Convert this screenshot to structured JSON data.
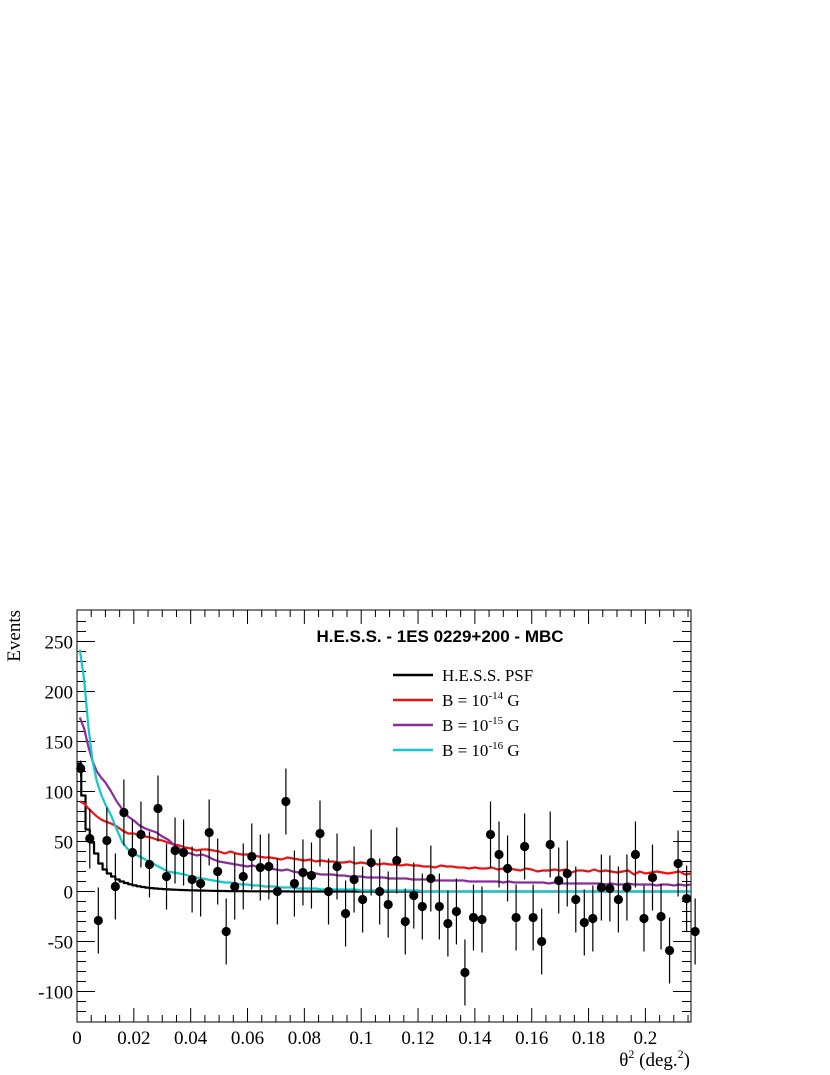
{
  "chart_data": {
    "type": "scatter",
    "title": "H.E.S.S. - 1ES 0229+200 - MBC",
    "ylabel": "Events",
    "xlabel": "θ² (deg.²)",
    "xlim": [
      0,
      0.218
    ],
    "ylim": [
      -130,
      280
    ],
    "x_ticks": [
      0,
      0.02,
      0.04,
      0.06,
      0.08,
      0.1,
      0.12,
      0.14,
      0.16,
      0.18,
      0.2
    ],
    "x_tick_labels": [
      "0",
      "0.02",
      "0.04",
      "0.06",
      "0.08",
      "0.1",
      "0.12",
      "0.14",
      "0.16",
      "0.18",
      "0.2"
    ],
    "y_ticks": [
      -100,
      -50,
      0,
      50,
      100,
      150,
      200,
      250
    ],
    "y_tick_labels": [
      "-100",
      "-50",
      "0",
      "50",
      "100",
      "150",
      "200",
      "250"
    ],
    "legend_position": "top-right",
    "legend": [
      {
        "text": "H.E.S.S. PSF",
        "color": "#000000"
      },
      {
        "text": "B = 10^-14 G",
        "color": "#ee1111"
      },
      {
        "text": "B = 10^-15 G",
        "color": "#8c2c9c"
      },
      {
        "text": "B = 10^-16 G",
        "color": "#11c8cc"
      }
    ],
    "points": [
      {
        "x": 0.0013,
        "y": 123,
        "err": 8
      },
      {
        "x": 0.0045,
        "y": 53,
        "err": 30
      },
      {
        "x": 0.0075,
        "y": -29,
        "err": 33
      },
      {
        "x": 0.0105,
        "y": 51,
        "err": 33
      },
      {
        "x": 0.0135,
        "y": 5,
        "err": 33
      },
      {
        "x": 0.0165,
        "y": 79,
        "err": 33
      },
      {
        "x": 0.0195,
        "y": 39,
        "err": 33
      },
      {
        "x": 0.0225,
        "y": 57,
        "err": 33
      },
      {
        "x": 0.0255,
        "y": 27,
        "err": 33
      },
      {
        "x": 0.0285,
        "y": 83,
        "err": 33
      },
      {
        "x": 0.0315,
        "y": 15,
        "err": 33
      },
      {
        "x": 0.0345,
        "y": 41,
        "err": 33
      },
      {
        "x": 0.0375,
        "y": 39,
        "err": 33
      },
      {
        "x": 0.0405,
        "y": 12,
        "err": 33
      },
      {
        "x": 0.0435,
        "y": 8,
        "err": 33
      },
      {
        "x": 0.0465,
        "y": 59,
        "err": 33
      },
      {
        "x": 0.0495,
        "y": 20,
        "err": 33
      },
      {
        "x": 0.0525,
        "y": -40,
        "err": 33
      },
      {
        "x": 0.0555,
        "y": 5,
        "err": 33
      },
      {
        "x": 0.0585,
        "y": 15,
        "err": 33
      },
      {
        "x": 0.0615,
        "y": 35,
        "err": 33
      },
      {
        "x": 0.0645,
        "y": 24,
        "err": 33
      },
      {
        "x": 0.0675,
        "y": 25,
        "err": 33
      },
      {
        "x": 0.0705,
        "y": 0,
        "err": 33
      },
      {
        "x": 0.0735,
        "y": 90,
        "err": 33
      },
      {
        "x": 0.0765,
        "y": 8,
        "err": 33
      },
      {
        "x": 0.0795,
        "y": 19,
        "err": 33
      },
      {
        "x": 0.0825,
        "y": 16,
        "err": 33
      },
      {
        "x": 0.0855,
        "y": 58,
        "err": 33
      },
      {
        "x": 0.0885,
        "y": 0,
        "err": 33
      },
      {
        "x": 0.0915,
        "y": 25,
        "err": 33
      },
      {
        "x": 0.0945,
        "y": -22,
        "err": 33
      },
      {
        "x": 0.0975,
        "y": 12,
        "err": 33
      },
      {
        "x": 0.1005,
        "y": -8,
        "err": 33
      },
      {
        "x": 0.1035,
        "y": 29,
        "err": 33
      },
      {
        "x": 0.1065,
        "y": 0,
        "err": 33
      },
      {
        "x": 0.1095,
        "y": -13,
        "err": 33
      },
      {
        "x": 0.1125,
        "y": 31,
        "err": 33
      },
      {
        "x": 0.1155,
        "y": -30,
        "err": 33
      },
      {
        "x": 0.1185,
        "y": -4,
        "err": 33
      },
      {
        "x": 0.1215,
        "y": -15,
        "err": 33
      },
      {
        "x": 0.1245,
        "y": 13,
        "err": 33
      },
      {
        "x": 0.1275,
        "y": -15,
        "err": 33
      },
      {
        "x": 0.1305,
        "y": -32,
        "err": 33
      },
      {
        "x": 0.1335,
        "y": -20,
        "err": 33
      },
      {
        "x": 0.1365,
        "y": -81,
        "err": 33
      },
      {
        "x": 0.1395,
        "y": -26,
        "err": 33
      },
      {
        "x": 0.1425,
        "y": -28,
        "err": 33
      },
      {
        "x": 0.1455,
        "y": 57,
        "err": 33
      },
      {
        "x": 0.1485,
        "y": 37,
        "err": 33
      },
      {
        "x": 0.1515,
        "y": 23,
        "err": 33
      },
      {
        "x": 0.1545,
        "y": -26,
        "err": 33
      },
      {
        "x": 0.1575,
        "y": 45,
        "err": 33
      },
      {
        "x": 0.1605,
        "y": -26,
        "err": 33
      },
      {
        "x": 0.1635,
        "y": -50,
        "err": 33
      },
      {
        "x": 0.1665,
        "y": 47,
        "err": 33
      },
      {
        "x": 0.1695,
        "y": 11,
        "err": 33
      },
      {
        "x": 0.1725,
        "y": 18,
        "err": 33
      },
      {
        "x": 0.1755,
        "y": -8,
        "err": 33
      },
      {
        "x": 0.1785,
        "y": -31,
        "err": 33
      },
      {
        "x": 0.1815,
        "y": -27,
        "err": 33
      },
      {
        "x": 0.1845,
        "y": 4,
        "err": 33
      },
      {
        "x": 0.1875,
        "y": 3,
        "err": 33
      },
      {
        "x": 0.1905,
        "y": -8,
        "err": 33
      },
      {
        "x": 0.1935,
        "y": 4,
        "err": 33
      },
      {
        "x": 0.1965,
        "y": 37,
        "err": 33
      },
      {
        "x": 0.1995,
        "y": -27,
        "err": 33
      },
      {
        "x": 0.2025,
        "y": 14,
        "err": 33
      },
      {
        "x": 0.2055,
        "y": -25,
        "err": 33
      },
      {
        "x": 0.2085,
        "y": -59,
        "err": 33
      },
      {
        "x": 0.2115,
        "y": 28,
        "err": 33
      },
      {
        "x": 0.2145,
        "y": -7,
        "err": 33
      },
      {
        "x": 0.2175,
        "y": -40,
        "err": 33
      }
    ],
    "series": [
      {
        "color": "#000000",
        "step": true,
        "x": [
          0,
          0.0015,
          0.003,
          0.0045,
          0.006,
          0.0075,
          0.009,
          0.0105,
          0.012,
          0.0135,
          0.015,
          0.0165,
          0.018,
          0.0195,
          0.021,
          0.0225,
          0.024,
          0.0255,
          0.027,
          0.0285,
          0.03,
          0.0315,
          0.033,
          0.0345,
          0.036,
          0.0375,
          0.039,
          0.0405,
          0.042,
          0.0435,
          0.045,
          0.0465,
          0.048,
          0.0495,
          0.051,
          0.0525,
          0.054,
          0.0555,
          0.057,
          0.0585,
          0.06,
          0.0615,
          0.063,
          0.0645,
          0.066,
          0.0675,
          0.069,
          0.0705,
          0.072,
          0.0735,
          0.075,
          0.0765,
          0.078,
          0.0795,
          0.081,
          0.0825,
          0.084,
          0.0855,
          0.087,
          0.0885,
          0.09
        ],
        "values": [
          128,
          96,
          62,
          49,
          38,
          28,
          22,
          18,
          15,
          12,
          10,
          8.5,
          7.2,
          6.1,
          5.2,
          4.5,
          3.9,
          3.4,
          3,
          2.7,
          2.4,
          2.1,
          1.9,
          1.7,
          1.5,
          1.4,
          1.2,
          1.1,
          1,
          0.9,
          0.8,
          0.7,
          0.6,
          0.5,
          0.5,
          0.4,
          0.4,
          0.3,
          0.3,
          0.3,
          0.2,
          0.2,
          0.2,
          0.2,
          0.1,
          0.1,
          0.1,
          0.1,
          0.1,
          0.1,
          0,
          0,
          0,
          0,
          0,
          0,
          0,
          0,
          0,
          0,
          0
        ]
      },
      {
        "color": "#ee1111",
        "x": [
          0.001,
          0.0025,
          0.004,
          0.0055,
          0.007,
          0.0085,
          0.01,
          0.012,
          0.014,
          0.016,
          0.018,
          0.02,
          0.022,
          0.024,
          0.026,
          0.028,
          0.03,
          0.032,
          0.034,
          0.036,
          0.038,
          0.04,
          0.042,
          0.044,
          0.046,
          0.048,
          0.05,
          0.052,
          0.054,
          0.056,
          0.058,
          0.06,
          0.062,
          0.064,
          0.066,
          0.068,
          0.07,
          0.072,
          0.074,
          0.076,
          0.078,
          0.08,
          0.082,
          0.084,
          0.086,
          0.088,
          0.09,
          0.092,
          0.094,
          0.096,
          0.098,
          0.1,
          0.102,
          0.104,
          0.106,
          0.108,
          0.11,
          0.112,
          0.114,
          0.116,
          0.118,
          0.12,
          0.122,
          0.124,
          0.126,
          0.128,
          0.13,
          0.132,
          0.134,
          0.136,
          0.138,
          0.14,
          0.142,
          0.144,
          0.146,
          0.148,
          0.15,
          0.152,
          0.154,
          0.156,
          0.158,
          0.16,
          0.162,
          0.164,
          0.166,
          0.168,
          0.17,
          0.172,
          0.174,
          0.176,
          0.178,
          0.18,
          0.182,
          0.184,
          0.186,
          0.188,
          0.19,
          0.192,
          0.194,
          0.196,
          0.198,
          0.2,
          0.202,
          0.204,
          0.206,
          0.208,
          0.21,
          0.212,
          0.214,
          0.216
        ],
        "values": [
          90,
          88,
          83,
          79,
          75,
          72,
          70,
          68,
          65,
          61,
          58,
          58,
          56,
          55,
          54,
          52,
          51,
          49,
          47,
          46,
          44,
          43,
          41,
          42,
          42,
          41,
          40,
          38,
          40,
          38,
          37,
          37,
          36,
          35,
          34,
          34,
          33,
          32,
          34,
          33,
          32,
          31,
          32,
          30,
          31,
          30,
          30,
          29,
          29,
          30,
          28,
          29,
          28,
          28,
          27,
          28,
          27,
          27,
          26,
          27,
          26,
          26,
          25,
          25,
          24,
          26,
          25,
          25,
          24,
          24,
          23,
          24,
          23,
          23,
          24,
          22,
          23,
          23,
          22,
          21,
          23,
          22,
          20,
          21,
          21,
          22,
          21,
          22,
          19,
          21,
          21,
          20,
          22,
          20,
          21,
          20,
          19,
          20,
          21,
          17,
          20,
          18,
          19,
          20,
          19,
          18,
          19,
          20,
          17,
          18
        ]
      },
      {
        "color": "#8c2c9c",
        "x": [
          0.001,
          0.0025,
          0.004,
          0.0055,
          0.007,
          0.0085,
          0.01,
          0.012,
          0.014,
          0.016,
          0.018,
          0.02,
          0.022,
          0.024,
          0.026,
          0.028,
          0.03,
          0.032,
          0.034,
          0.036,
          0.038,
          0.04,
          0.042,
          0.044,
          0.046,
          0.048,
          0.05,
          0.052,
          0.054,
          0.056,
          0.058,
          0.06,
          0.062,
          0.064,
          0.066,
          0.068,
          0.07,
          0.072,
          0.074,
          0.076,
          0.078,
          0.08,
          0.082,
          0.084,
          0.086,
          0.088,
          0.09,
          0.092,
          0.094,
          0.096,
          0.098,
          0.1,
          0.102,
          0.104,
          0.106,
          0.108,
          0.11,
          0.112,
          0.114,
          0.116,
          0.118,
          0.12,
          0.122,
          0.124,
          0.126,
          0.128,
          0.13,
          0.132,
          0.134,
          0.136,
          0.138,
          0.14,
          0.142,
          0.144,
          0.146,
          0.148,
          0.15,
          0.152,
          0.154,
          0.156,
          0.158,
          0.16,
          0.162,
          0.164,
          0.166,
          0.168,
          0.17,
          0.172,
          0.174,
          0.176,
          0.178,
          0.18,
          0.182,
          0.184,
          0.186,
          0.188,
          0.19,
          0.192,
          0.194,
          0.196,
          0.198,
          0.2,
          0.202,
          0.204,
          0.206,
          0.208,
          0.21,
          0.212,
          0.214,
          0.216
        ],
        "values": [
          174,
          163,
          145,
          130,
          120,
          114,
          109,
          100,
          90,
          82,
          75,
          71,
          66,
          63,
          61,
          59,
          55,
          52,
          47,
          43,
          39,
          38,
          36,
          37,
          35,
          32,
          30,
          29,
          28,
          27,
          26,
          25,
          26,
          24,
          24,
          23,
          22,
          21,
          22,
          20,
          19,
          19,
          18,
          18,
          17,
          17,
          17,
          16,
          16,
          15,
          15,
          15,
          14,
          14,
          14,
          14,
          13,
          13,
          13,
          13,
          12,
          12,
          12,
          12,
          11,
          11,
          11,
          11,
          11,
          11,
          10,
          10,
          10,
          10,
          10,
          10,
          9,
          10,
          9,
          9,
          9,
          9,
          9,
          9,
          8,
          9,
          8,
          8,
          8,
          8,
          8,
          8,
          8,
          8,
          7,
          8,
          7,
          7,
          8,
          7,
          7,
          7,
          7,
          6,
          7,
          7,
          6,
          7,
          6,
          7
        ]
      },
      {
        "color": "#11c8cc",
        "x": [
          0.001,
          0.0025,
          0.004,
          0.0055,
          0.007,
          0.0085,
          0.01,
          0.012,
          0.014,
          0.016,
          0.018,
          0.02,
          0.022,
          0.024,
          0.026,
          0.028,
          0.03,
          0.032,
          0.034,
          0.036,
          0.038,
          0.04,
          0.042,
          0.044,
          0.046,
          0.048,
          0.05,
          0.052,
          0.054,
          0.056,
          0.058,
          0.06,
          0.062,
          0.064,
          0.066,
          0.068,
          0.07,
          0.072,
          0.074,
          0.076,
          0.078,
          0.08,
          0.082,
          0.084,
          0.086,
          0.088,
          0.09,
          0.092,
          0.094,
          0.096,
          0.098,
          0.1,
          0.102,
          0.104,
          0.106,
          0.108,
          0.11,
          0.112,
          0.114,
          0.116,
          0.118,
          0.12,
          0.122,
          0.124,
          0.126,
          0.128,
          0.13,
          0.132,
          0.134,
          0.136,
          0.138,
          0.14,
          0.142,
          0.144,
          0.146,
          0.148,
          0.15,
          0.152,
          0.154,
          0.156,
          0.158,
          0.16,
          0.162,
          0.164,
          0.166,
          0.168,
          0.17,
          0.172,
          0.174,
          0.176,
          0.178,
          0.18,
          0.182,
          0.184,
          0.186,
          0.188,
          0.19,
          0.192,
          0.194,
          0.196,
          0.198,
          0.2,
          0.202,
          0.204,
          0.206,
          0.208,
          0.21,
          0.212,
          0.214,
          0.216
        ],
        "values": [
          242,
          212,
          165,
          130,
          110,
          97,
          87,
          76,
          62,
          49,
          42,
          38,
          35,
          32,
          29,
          26,
          23,
          20,
          19,
          18,
          17,
          15,
          14,
          13,
          12,
          11,
          10,
          9,
          9,
          8,
          7,
          7,
          6,
          6,
          5,
          5,
          5,
          4,
          4,
          4,
          3,
          3,
          3,
          3,
          2,
          2,
          2,
          2,
          2,
          2,
          2,
          1,
          1,
          1,
          1,
          1,
          1,
          1,
          1,
          1,
          1,
          1,
          0,
          0,
          0,
          0,
          0,
          0,
          0,
          0,
          0,
          0,
          0,
          0,
          0,
          0,
          0,
          0,
          0,
          0,
          0,
          0,
          0,
          0,
          0,
          0,
          0,
          0,
          0,
          0,
          0,
          0,
          0,
          0,
          0,
          0,
          0,
          0,
          0,
          0,
          0,
          0,
          0,
          0,
          0,
          0,
          0,
          0,
          0,
          0
        ]
      }
    ]
  }
}
